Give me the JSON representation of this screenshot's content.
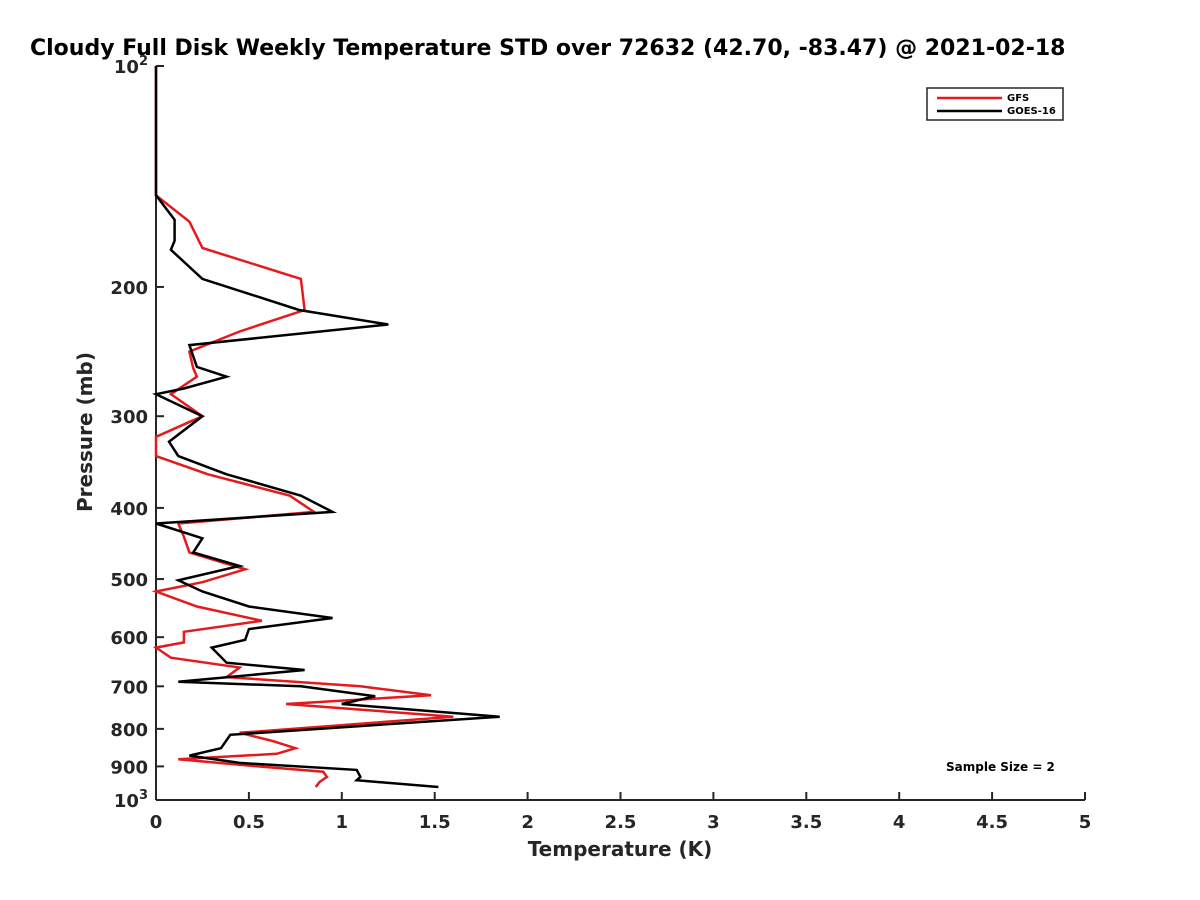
{
  "chart_data": {
    "type": "line",
    "title": "Cloudy Full Disk Weekly Temperature STD over 72632 (42.70, -83.47) @ 2021-02-18",
    "xlabel": "Temperature (K)",
    "ylabel": "Pressure (mb)",
    "xlim": [
      0,
      5
    ],
    "ylim": [
      100,
      1000
    ],
    "y_scale": "log",
    "y_reversed": true,
    "x_ticks": [
      "0",
      "0.5",
      "1",
      "1.5",
      "2",
      "2.5",
      "3",
      "3.5",
      "4",
      "4.5",
      "5"
    ],
    "y_ticks": [
      {
        "value": 100,
        "base": "10",
        "exp": "2"
      },
      {
        "value": 200,
        "label": "200"
      },
      {
        "value": 300,
        "label": "300"
      },
      {
        "value": 400,
        "label": "400"
      },
      {
        "value": 500,
        "label": "500"
      },
      {
        "value": 600,
        "label": "600"
      },
      {
        "value": 700,
        "label": "700"
      },
      {
        "value": 800,
        "label": "800"
      },
      {
        "value": 900,
        "label": "900"
      },
      {
        "value": 1000,
        "base": "10",
        "exp": "3"
      }
    ],
    "grid": false,
    "legend_position": "top-right",
    "annotation": "Sample Size = 2",
    "series": [
      {
        "name": "GFS",
        "color": "#e41a1c",
        "points": [
          [
            0.0,
            100
          ],
          [
            0.0,
            125
          ],
          [
            0.0,
            150
          ],
          [
            0.18,
            163
          ],
          [
            0.25,
            177
          ],
          [
            0.78,
            195
          ],
          [
            0.8,
            215
          ],
          [
            0.45,
            230
          ],
          [
            0.18,
            245
          ],
          [
            0.2,
            258
          ],
          [
            0.22,
            265
          ],
          [
            0.08,
            280
          ],
          [
            0.25,
            300
          ],
          [
            0.0,
            320
          ],
          [
            0.0,
            340
          ],
          [
            0.28,
            360
          ],
          [
            0.72,
            385
          ],
          [
            0.85,
            405
          ],
          [
            0.12,
            420
          ],
          [
            0.15,
            438
          ],
          [
            0.18,
            460
          ],
          [
            0.48,
            485
          ],
          [
            0.25,
            505
          ],
          [
            0.0,
            520
          ],
          [
            0.22,
            545
          ],
          [
            0.57,
            570
          ],
          [
            0.15,
            590
          ],
          [
            0.15,
            610
          ],
          [
            0.0,
            620
          ],
          [
            0.08,
            640
          ],
          [
            0.45,
            660
          ],
          [
            0.38,
            680
          ],
          [
            1.1,
            700
          ],
          [
            1.48,
            720
          ],
          [
            0.7,
            740
          ],
          [
            1.6,
            770
          ],
          [
            0.45,
            810
          ],
          [
            0.62,
            830
          ],
          [
            0.75,
            850
          ],
          [
            0.65,
            865
          ],
          [
            0.12,
            880
          ],
          [
            0.55,
            900
          ],
          [
            0.9,
            915
          ],
          [
            0.92,
            930
          ],
          [
            0.88,
            945
          ],
          [
            0.86,
            960
          ]
        ]
      },
      {
        "name": "GOES-16",
        "color": "#000000",
        "points": [
          [
            0.0,
            100
          ],
          [
            0.0,
            125
          ],
          [
            0.0,
            150
          ],
          [
            0.1,
            162
          ],
          [
            0.1,
            173
          ],
          [
            0.08,
            178
          ],
          [
            0.25,
            195
          ],
          [
            0.77,
            215
          ],
          [
            1.25,
            225
          ],
          [
            0.18,
            240
          ],
          [
            0.22,
            257
          ],
          [
            0.38,
            265
          ],
          [
            0.15,
            275
          ],
          [
            0.0,
            280
          ],
          [
            0.25,
            300
          ],
          [
            0.07,
            325
          ],
          [
            0.12,
            340
          ],
          [
            0.38,
            360
          ],
          [
            0.78,
            385
          ],
          [
            0.95,
            405
          ],
          [
            0.0,
            420
          ],
          [
            0.25,
            440
          ],
          [
            0.2,
            460
          ],
          [
            0.45,
            480
          ],
          [
            0.12,
            502
          ],
          [
            0.25,
            520
          ],
          [
            0.5,
            545
          ],
          [
            0.95,
            565
          ],
          [
            0.5,
            585
          ],
          [
            0.48,
            605
          ],
          [
            0.3,
            620
          ],
          [
            0.38,
            650
          ],
          [
            0.8,
            665
          ],
          [
            0.12,
            690
          ],
          [
            0.78,
            700
          ],
          [
            1.18,
            722
          ],
          [
            1.0,
            740
          ],
          [
            1.85,
            770
          ],
          [
            0.4,
            815
          ],
          [
            0.35,
            850
          ],
          [
            0.18,
            870
          ],
          [
            0.45,
            890
          ],
          [
            1.08,
            910
          ],
          [
            1.1,
            930
          ],
          [
            1.08,
            940
          ],
          [
            1.52,
            960
          ]
        ]
      }
    ]
  }
}
